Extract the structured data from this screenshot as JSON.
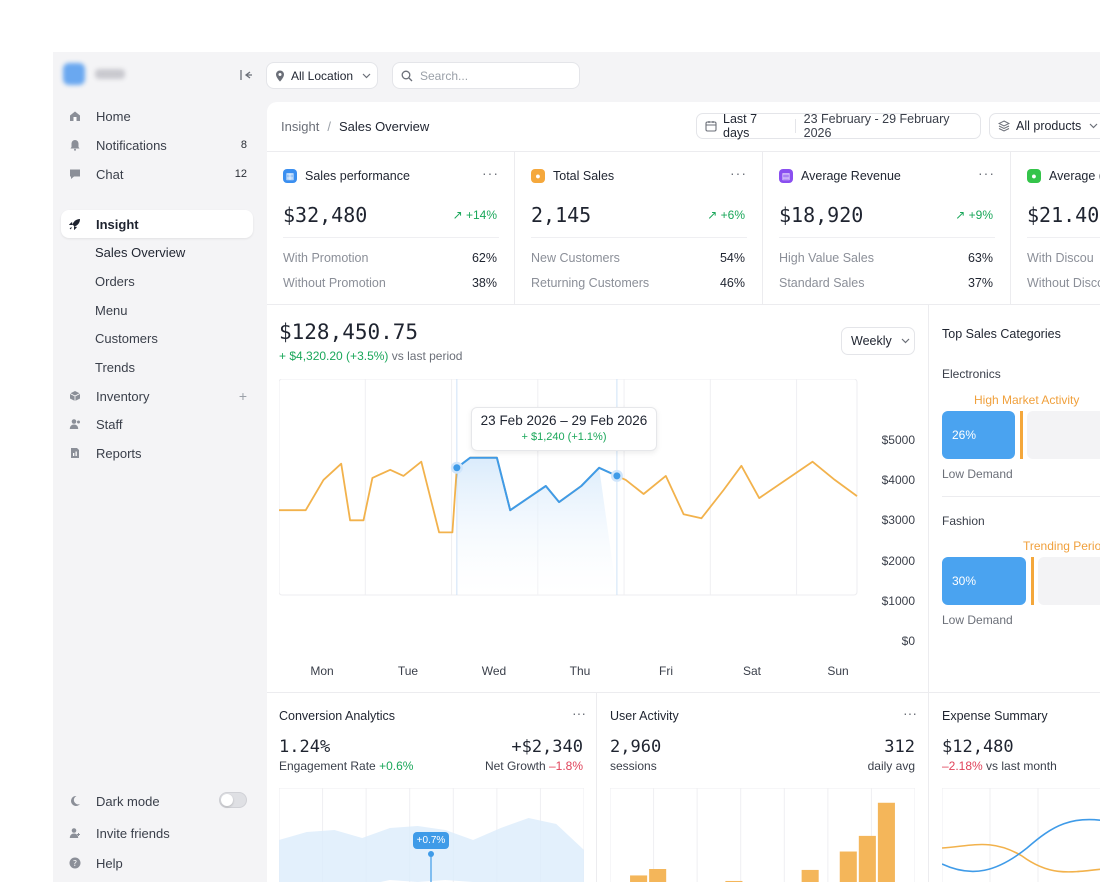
{
  "location": {
    "label": "All Location"
  },
  "search": {
    "placeholder": "Search..."
  },
  "sidebar": {
    "items": [
      {
        "label": "Home"
      },
      {
        "label": "Notifications",
        "count": "8"
      },
      {
        "label": "Chat",
        "count": "12"
      }
    ],
    "insight": {
      "label": "Insight",
      "children": [
        "Sales Overview",
        "Orders",
        "Menu",
        "Customers",
        "Trends"
      ]
    },
    "lower": [
      {
        "label": "Inventory"
      },
      {
        "label": "Staff"
      },
      {
        "label": "Reports"
      }
    ],
    "footer": [
      {
        "label": "Dark mode"
      },
      {
        "label": "Invite friends"
      },
      {
        "label": "Help"
      }
    ]
  },
  "breadcrumb": {
    "root": "Insight",
    "sep": "/",
    "current": "Sales Overview"
  },
  "date_filter": {
    "preset": "Last 7 days",
    "range": "23 February - 29 February 2026"
  },
  "product_filter": {
    "label": "All products"
  },
  "kpis": [
    {
      "title": "Sales performance",
      "value": "$32,480",
      "change": "+14%",
      "color": "#3b8ff0",
      "rows": [
        {
          "label": "With Promotion",
          "value": "62%"
        },
        {
          "label": "Without Promotion",
          "value": "38%"
        }
      ]
    },
    {
      "title": "Total Sales",
      "value": "2,145",
      "change": "+6%",
      "color": "#f5a83c",
      "rows": [
        {
          "label": "New Customers",
          "value": "54%"
        },
        {
          "label": "Returning Customers",
          "value": "46%"
        }
      ]
    },
    {
      "title": "Average Revenue",
      "value": "$18,920",
      "change": "+9%",
      "color": "#8a4ff0",
      "rows": [
        {
          "label": "High Value Sales",
          "value": "63%"
        },
        {
          "label": "Standard Sales",
          "value": "37%"
        }
      ]
    },
    {
      "title": "Average (",
      "value": "$21.40",
      "change": "",
      "color": "#34c44a",
      "rows": [
        {
          "label": "With Discou",
          "value": ""
        },
        {
          "label": "Without Disco",
          "value": ""
        }
      ]
    }
  ],
  "revenue": {
    "value": "$128,450.75",
    "change": "+ $4,320.20 (+3.5%)",
    "change_suffix": "vs last period",
    "period_select": "Weekly"
  },
  "tooltip": {
    "range": "23 Feb 2026 – 29 Feb 2026",
    "change": "+ $1,240 (+1.1%)"
  },
  "chart_data": {
    "type": "line",
    "categories": [
      "Mon",
      "Tue",
      "Wed",
      "Thu",
      "Fri",
      "Sat",
      "Sun"
    ],
    "y_ticks": [
      "$5000",
      "$4000",
      "$3000",
      "$2000",
      "$1000",
      "$0"
    ],
    "ylim": [
      0,
      5000
    ],
    "grid": true,
    "x": [
      0,
      0.3,
      0.5,
      0.7,
      0.8,
      0.95,
      1.05,
      1.25,
      1.4,
      1.6,
      1.8,
      1.95,
      2.0,
      2.15,
      2.45,
      2.6,
      2.8,
      3.0,
      3.15,
      3.4,
      3.6,
      3.9,
      4.1,
      4.35,
      4.55,
      4.75,
      5.0,
      5.2,
      5.4,
      5.7,
      6.0,
      6.25,
      6.5
    ],
    "y": [
      2000,
      2000,
      2750,
      3150,
      1750,
      1750,
      2800,
      3000,
      2850,
      3200,
      1450,
      1450,
      3050,
      3300,
      3300,
      2000,
      2300,
      2600,
      2200,
      2600,
      3050,
      2750,
      2400,
      2850,
      1900,
      1800,
      2500,
      3100,
      2300,
      2750,
      3200,
      2750,
      2350
    ],
    "highlight": {
      "from": 2.0,
      "to": 3.8,
      "color": "#3f9be8"
    },
    "line_color": "#f2b24c"
  },
  "categories": {
    "title": "Top Sales Categories",
    "items": [
      {
        "name": "Electronics",
        "note": "High Market Activity",
        "value": "26%",
        "fraction": 0.26,
        "low": "Low Demand"
      },
      {
        "name": "Fashion",
        "note": "Trending Perio",
        "value": "30%",
        "fraction": 0.3,
        "low": "Low Demand"
      }
    ]
  },
  "conversion": {
    "title": "Conversion Analytics",
    "value": "1.24%",
    "label": "Engagement Rate",
    "change": "+0.6%",
    "value2": "+$2,340",
    "label2": "Net Growth",
    "change2": "–1.8%",
    "marker": "+0.7%"
  },
  "activity": {
    "title": "User Activity",
    "value": "2,960",
    "label": "sessions",
    "value2": "312",
    "label2": "daily avg",
    "bars": [
      0,
      0.18,
      0.25,
      0,
      0,
      0,
      0.12,
      0,
      0,
      0,
      0.24,
      0,
      0.44,
      0.61,
      0.97,
      0
    ]
  },
  "expense": {
    "title": "Expense Summary",
    "value": "$12,480",
    "change": "–2.18%",
    "label": "vs last month"
  }
}
